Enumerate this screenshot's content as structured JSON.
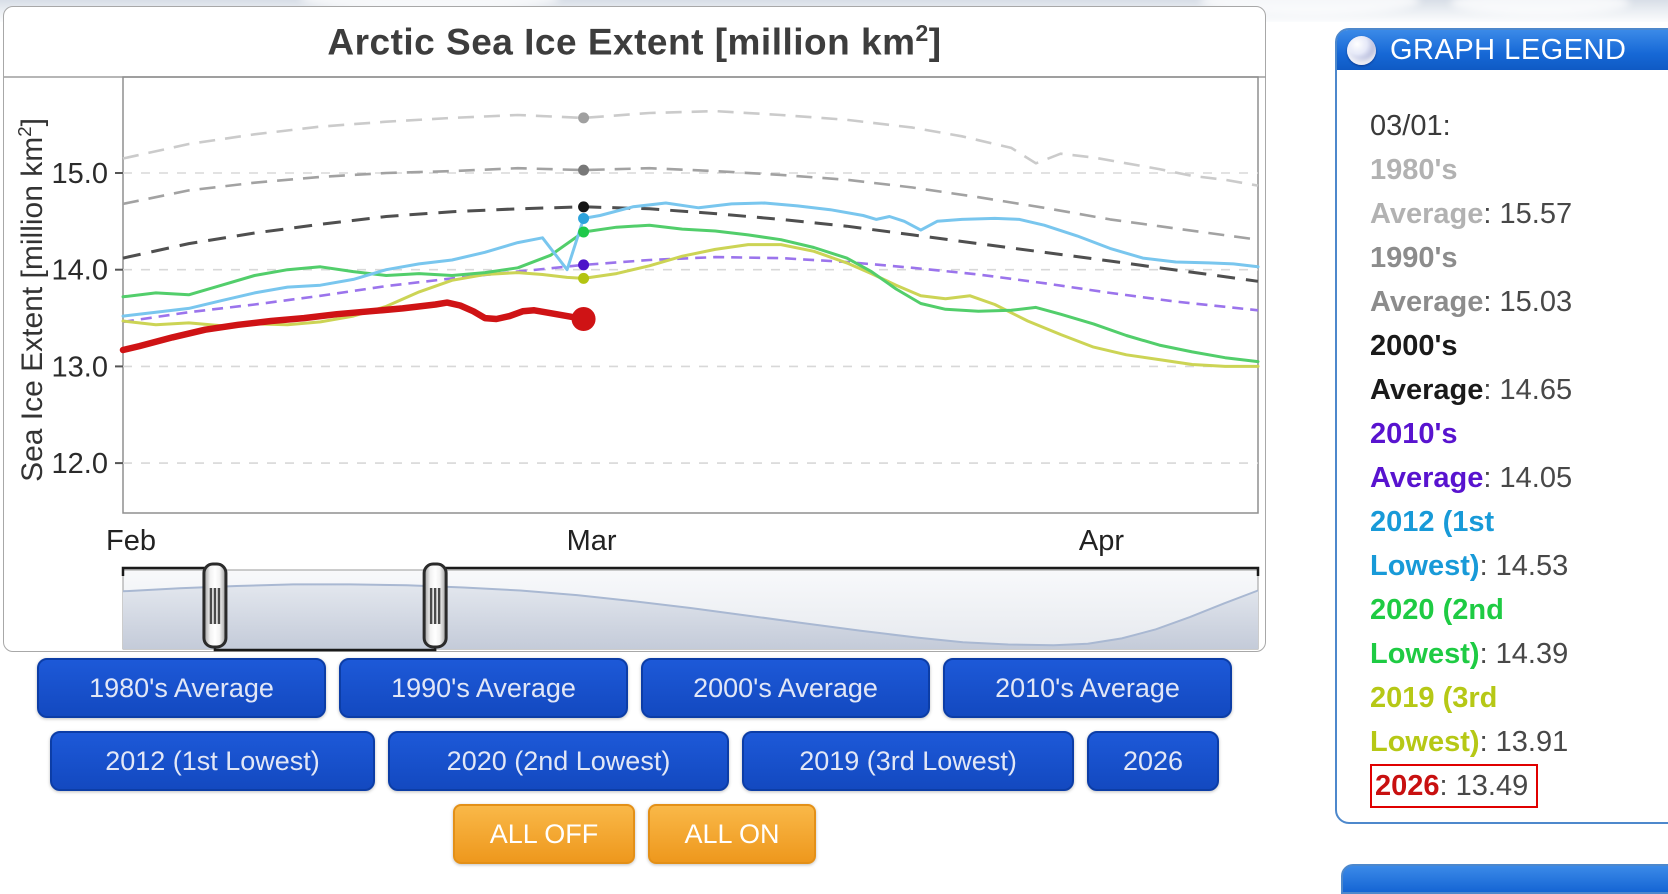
{
  "chart": {
    "title_pre": "Arctic Sea Ice Extent [million km",
    "title_sup": "2",
    "title_post": "]",
    "y_label_pre": "Sea Ice Extent [million km",
    "y_label_sup": "2",
    "y_label_post": "]"
  },
  "chart_data": {
    "type": "line",
    "title": "Arctic Sea Ice Extent [million km^2]",
    "ylabel": "Sea Ice Extent [million km^2]",
    "x_unit": "days since Feb 1",
    "ylim": [
      11.5,
      16.0
    ],
    "grid": "dashed horizontal",
    "x_ticks": [
      {
        "label": "Feb",
        "day": 0
      },
      {
        "label": "Mar",
        "day": 28
      },
      {
        "label": "Apr",
        "day": 59
      }
    ],
    "y_ticks": [
      {
        "label": "15.0",
        "value": 15.0
      },
      {
        "label": "14.0",
        "value": 14.0
      },
      {
        "label": "13.0",
        "value": 13.0
      },
      {
        "label": "12.0",
        "value": 12.0
      }
    ],
    "marker_date": "03/01",
    "marker_day": 28,
    "series": [
      {
        "name": "1980's Average",
        "color": "#cbcbcb",
        "dash": "16 10",
        "width": 2.6,
        "marker_value": 15.57,
        "marker_color": "#a0a0a0",
        "marker_r": 5.5,
        "points": [
          [
            0,
            15.15
          ],
          [
            4,
            15.3
          ],
          [
            8,
            15.4
          ],
          [
            12,
            15.48
          ],
          [
            16,
            15.53
          ],
          [
            20,
            15.57
          ],
          [
            24,
            15.6
          ],
          [
            28,
            15.57
          ],
          [
            32,
            15.62
          ],
          [
            36,
            15.64
          ],
          [
            40,
            15.6
          ],
          [
            44,
            15.55
          ],
          [
            48,
            15.47
          ],
          [
            51,
            15.38
          ],
          [
            54,
            15.26
          ],
          [
            55.5,
            15.1
          ],
          [
            57,
            15.2
          ],
          [
            59,
            15.16
          ],
          [
            61,
            15.1
          ],
          [
            63,
            15.04
          ],
          [
            65,
            14.97
          ],
          [
            67,
            14.93
          ],
          [
            69,
            14.87
          ]
        ]
      },
      {
        "name": "1990's Average",
        "color": "#a2a2a2",
        "dash": "16 10",
        "width": 2.6,
        "marker_value": 15.03,
        "marker_color": "#787878",
        "marker_r": 5.5,
        "points": [
          [
            0,
            14.68
          ],
          [
            4,
            14.82
          ],
          [
            8,
            14.9
          ],
          [
            12,
            14.96
          ],
          [
            16,
            15.0
          ],
          [
            20,
            15.02
          ],
          [
            24,
            15.05
          ],
          [
            28,
            15.03
          ],
          [
            32,
            15.05
          ],
          [
            36,
            15.02
          ],
          [
            40,
            14.98
          ],
          [
            44,
            14.93
          ],
          [
            48,
            14.85
          ],
          [
            52,
            14.75
          ],
          [
            56,
            14.64
          ],
          [
            60,
            14.52
          ],
          [
            63,
            14.45
          ],
          [
            66,
            14.38
          ],
          [
            69,
            14.31
          ]
        ]
      },
      {
        "name": "2000's Average",
        "color": "#4f4f4f",
        "dash": "18 11",
        "width": 3,
        "marker_value": 14.65,
        "marker_color": "#151515",
        "marker_r": 5.5,
        "points": [
          [
            0,
            14.12
          ],
          [
            4,
            14.27
          ],
          [
            8,
            14.38
          ],
          [
            12,
            14.47
          ],
          [
            16,
            14.55
          ],
          [
            20,
            14.6
          ],
          [
            24,
            14.63
          ],
          [
            28,
            14.65
          ],
          [
            32,
            14.63
          ],
          [
            36,
            14.58
          ],
          [
            40,
            14.52
          ],
          [
            44,
            14.45
          ],
          [
            48,
            14.36
          ],
          [
            52,
            14.27
          ],
          [
            56,
            14.18
          ],
          [
            60,
            14.09
          ],
          [
            63,
            14.02
          ],
          [
            66,
            13.95
          ],
          [
            69,
            13.88
          ]
        ]
      },
      {
        "name": "2010's Average",
        "color": "#9b74ec",
        "dash": "11 7",
        "width": 2.6,
        "marker_value": 14.05,
        "marker_color": "#4d13c9",
        "marker_r": 5.5,
        "points": [
          [
            0,
            13.46
          ],
          [
            4,
            13.56
          ],
          [
            8,
            13.64
          ],
          [
            12,
            13.73
          ],
          [
            16,
            13.83
          ],
          [
            20,
            13.91
          ],
          [
            24,
            13.98
          ],
          [
            28,
            14.05
          ],
          [
            32,
            14.1
          ],
          [
            36,
            14.13
          ],
          [
            40,
            14.12
          ],
          [
            44,
            14.08
          ],
          [
            48,
            14.02
          ],
          [
            52,
            13.95
          ],
          [
            56,
            13.86
          ],
          [
            60,
            13.76
          ],
          [
            64,
            13.67
          ],
          [
            69,
            13.58
          ]
        ]
      },
      {
        "name": "2019 (3rd Lowest)",
        "color": "#ccd455",
        "dash": null,
        "width": 3,
        "marker_value": 13.91,
        "marker_color": "#b3c412",
        "marker_r": 5.5,
        "points": [
          [
            0,
            13.47
          ],
          [
            2,
            13.43
          ],
          [
            4,
            13.45
          ],
          [
            6,
            13.42
          ],
          [
            8,
            13.44
          ],
          [
            10,
            13.43
          ],
          [
            12,
            13.46
          ],
          [
            14,
            13.52
          ],
          [
            16,
            13.62
          ],
          [
            18,
            13.77
          ],
          [
            20,
            13.89
          ],
          [
            22,
            13.95
          ],
          [
            24,
            13.97
          ],
          [
            25.5,
            13.95
          ],
          [
            27,
            13.92
          ],
          [
            28,
            13.91
          ],
          [
            30,
            13.96
          ],
          [
            32,
            14.04
          ],
          [
            34,
            14.14
          ],
          [
            36,
            14.21
          ],
          [
            38,
            14.26
          ],
          [
            40,
            14.26
          ],
          [
            42,
            14.19
          ],
          [
            44,
            14.07
          ],
          [
            45.5,
            13.96
          ],
          [
            47,
            13.84
          ],
          [
            48.5,
            13.73
          ],
          [
            50,
            13.7
          ],
          [
            51.5,
            13.73
          ],
          [
            53,
            13.64
          ],
          [
            55,
            13.47
          ],
          [
            57,
            13.33
          ],
          [
            59,
            13.2
          ],
          [
            61,
            13.12
          ],
          [
            63,
            13.07
          ],
          [
            65,
            13.02
          ],
          [
            67,
            13.0
          ],
          [
            69,
            13.0
          ]
        ]
      },
      {
        "name": "2020 (2nd Lowest)",
        "color": "#52ce6b",
        "dash": null,
        "width": 3,
        "marker_value": 14.39,
        "marker_color": "#1fc94a",
        "marker_r": 5.5,
        "points": [
          [
            0,
            13.72
          ],
          [
            2,
            13.76
          ],
          [
            4,
            13.74
          ],
          [
            6,
            13.84
          ],
          [
            8,
            13.94
          ],
          [
            10,
            14.0
          ],
          [
            12,
            14.03
          ],
          [
            14,
            13.98
          ],
          [
            16,
            13.94
          ],
          [
            18,
            13.96
          ],
          [
            20,
            13.94
          ],
          [
            22,
            13.97
          ],
          [
            24,
            14.02
          ],
          [
            26,
            14.15
          ],
          [
            28,
            14.39
          ],
          [
            30,
            14.44
          ],
          [
            32,
            14.46
          ],
          [
            34,
            14.42
          ],
          [
            36,
            14.4
          ],
          [
            38,
            14.36
          ],
          [
            40,
            14.31
          ],
          [
            42,
            14.23
          ],
          [
            44,
            14.12
          ],
          [
            45.5,
            13.98
          ],
          [
            47,
            13.8
          ],
          [
            48.5,
            13.65
          ],
          [
            50,
            13.59
          ],
          [
            52,
            13.57
          ],
          [
            54,
            13.58
          ],
          [
            55.5,
            13.61
          ],
          [
            57,
            13.54
          ],
          [
            59,
            13.44
          ],
          [
            61,
            13.32
          ],
          [
            63,
            13.22
          ],
          [
            65,
            13.15
          ],
          [
            67,
            13.09
          ],
          [
            69,
            13.05
          ]
        ]
      },
      {
        "name": "2012 (1st Lowest)",
        "color": "#79c6ee",
        "dash": null,
        "width": 3,
        "marker_value": 14.53,
        "marker_color": "#2da3dc",
        "marker_r": 5.5,
        "points": [
          [
            0,
            13.52
          ],
          [
            2,
            13.56
          ],
          [
            4,
            13.6
          ],
          [
            6,
            13.68
          ],
          [
            8,
            13.76
          ],
          [
            10,
            13.82
          ],
          [
            12,
            13.84
          ],
          [
            14,
            13.9
          ],
          [
            16,
            14.0
          ],
          [
            18,
            14.06
          ],
          [
            20,
            14.1
          ],
          [
            22,
            14.18
          ],
          [
            24,
            14.28
          ],
          [
            25.5,
            14.33
          ],
          [
            27,
            14.0
          ],
          [
            28,
            14.53
          ],
          [
            29,
            14.56
          ],
          [
            31,
            14.65
          ],
          [
            33,
            14.69
          ],
          [
            35,
            14.64
          ],
          [
            37,
            14.68
          ],
          [
            39,
            14.69
          ],
          [
            41,
            14.66
          ],
          [
            43,
            14.62
          ],
          [
            45,
            14.56
          ],
          [
            45.8,
            14.52
          ],
          [
            46.6,
            14.55
          ],
          [
            47.5,
            14.5
          ],
          [
            48.5,
            14.41
          ],
          [
            49.5,
            14.5
          ],
          [
            51,
            14.52
          ],
          [
            53,
            14.53
          ],
          [
            54.5,
            14.52
          ],
          [
            56,
            14.46
          ],
          [
            58,
            14.35
          ],
          [
            60,
            14.22
          ],
          [
            62,
            14.12
          ],
          [
            64,
            14.08
          ],
          [
            66,
            14.07
          ],
          [
            67.5,
            14.06
          ],
          [
            69,
            14.03
          ]
        ]
      },
      {
        "name": "2026",
        "color": "#cf1315",
        "dash": null,
        "width": 6.5,
        "marker_value": 13.49,
        "marker_color": "#cf1315",
        "marker_r": 12,
        "points": [
          [
            0,
            13.17
          ],
          [
            1,
            13.21
          ],
          [
            3,
            13.3
          ],
          [
            5,
            13.38
          ],
          [
            7,
            13.43
          ],
          [
            9,
            13.47
          ],
          [
            11,
            13.5
          ],
          [
            13,
            13.54
          ],
          [
            15,
            13.57
          ],
          [
            17,
            13.6
          ],
          [
            19,
            13.64
          ],
          [
            19.7,
            13.66
          ],
          [
            20.5,
            13.63
          ],
          [
            21.3,
            13.57
          ],
          [
            22,
            13.5
          ],
          [
            22.7,
            13.49
          ],
          [
            23.5,
            13.52
          ],
          [
            24.3,
            13.57
          ],
          [
            25,
            13.58
          ],
          [
            26,
            13.55
          ],
          [
            27,
            13.52
          ],
          [
            28,
            13.49
          ]
        ]
      }
    ]
  },
  "slider": {
    "handle_fractions": [
      0.081,
      0.275
    ],
    "wave": [
      [
        0,
        0.28
      ],
      [
        0.05,
        0.24
      ],
      [
        0.1,
        0.21
      ],
      [
        0.15,
        0.19
      ],
      [
        0.2,
        0.19
      ],
      [
        0.25,
        0.2
      ],
      [
        0.3,
        0.23
      ],
      [
        0.35,
        0.27
      ],
      [
        0.4,
        0.33
      ],
      [
        0.45,
        0.41
      ],
      [
        0.5,
        0.5
      ],
      [
        0.55,
        0.6
      ],
      [
        0.6,
        0.7
      ],
      [
        0.65,
        0.8
      ],
      [
        0.7,
        0.89
      ],
      [
        0.74,
        0.95
      ],
      [
        0.78,
        0.98
      ],
      [
        0.82,
        0.99
      ],
      [
        0.85,
        0.97
      ],
      [
        0.88,
        0.9
      ],
      [
        0.91,
        0.78
      ],
      [
        0.94,
        0.62
      ],
      [
        0.97,
        0.44
      ],
      [
        1,
        0.27
      ]
    ]
  },
  "buttons": {
    "rows": [
      [
        {
          "label": "1980's Average"
        },
        {
          "label": "1990's Average"
        },
        {
          "label": "2000's Average"
        },
        {
          "label": "2010's Average"
        }
      ],
      [
        {
          "label": "2012 (1st Lowest)"
        },
        {
          "label": "2020 (2nd Lowest)"
        },
        {
          "label": "2019 (3rd Lowest)"
        },
        {
          "label": "2026"
        }
      ],
      [
        {
          "label": "ALL OFF",
          "style": "orange"
        },
        {
          "label": "ALL ON",
          "style": "orange"
        }
      ]
    ]
  },
  "legend": {
    "header": "GRAPH LEGEND",
    "date": "03/01:",
    "entries": [
      {
        "label": "1980's Average",
        "value": "15.57",
        "color": "#b2b2b2",
        "boxed": false
      },
      {
        "label": "1990's Average",
        "value": "15.03",
        "color": "#8c8c8c",
        "boxed": false
      },
      {
        "label": "2000's Average",
        "value": "14.65",
        "color": "#1a1a1a",
        "boxed": false
      },
      {
        "label": "2010's Average",
        "value": "14.05",
        "color": "#5813cf",
        "boxed": false
      },
      {
        "label": "2012 (1st Lowest)",
        "value": "14.53",
        "color": "#189ad8",
        "boxed": false
      },
      {
        "label": "2020 (2nd Lowest)",
        "value": "14.39",
        "color": "#1ecb43",
        "boxed": false
      },
      {
        "label": "2019 (3rd Lowest)",
        "value": "13.91",
        "color": "#b6c816",
        "boxed": false
      },
      {
        "label": "2026",
        "value": "13.49",
        "color": "#c81010",
        "boxed": true
      }
    ]
  }
}
